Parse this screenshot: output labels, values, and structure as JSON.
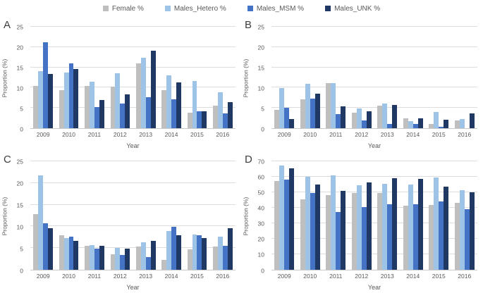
{
  "legend": {
    "items": [
      {
        "label": "Female %",
        "color": "#BFBFBF"
      },
      {
        "label": "Males_Hetero %",
        "color": "#9DC3E6"
      },
      {
        "label": "Males_MSM %",
        "color": "#4472C4"
      },
      {
        "label": "Males_UNK %",
        "color": "#1F3864"
      }
    ]
  },
  "chart_data": [
    {
      "panel": "A",
      "type": "bar",
      "title": "",
      "xlabel": "Year",
      "ylabel": "Proportion (%)",
      "ylim": [
        0,
        25
      ],
      "ytick_step": 5,
      "grid": true,
      "legend_position": "top",
      "categories": [
        "2009",
        "2010",
        "2011",
        "2012",
        "2013",
        "2014",
        "2015",
        "2016"
      ],
      "series": [
        {
          "name": "Female %",
          "color": "#BFBFBF",
          "values": [
            10.4,
            9.3,
            10.5,
            10.3,
            15.9,
            9.4,
            3.9,
            5.6
          ]
        },
        {
          "name": "Males_Hetero %",
          "color": "#9DC3E6",
          "values": [
            14.0,
            13.8,
            11.5,
            13.6,
            17.3,
            13.0,
            11.7,
            8.8
          ]
        },
        {
          "name": "Males_MSM %",
          "color": "#4472C4",
          "values": [
            21.1,
            15.9,
            5.2,
            6.1,
            7.6,
            7.2,
            4.2,
            3.7
          ]
        },
        {
          "name": "Males_UNK %",
          "color": "#1F3864",
          "values": [
            13.4,
            14.6,
            7.0,
            8.3,
            19.1,
            11.3,
            4.1,
            6.5
          ]
        }
      ]
    },
    {
      "panel": "B",
      "type": "bar",
      "title": "",
      "xlabel": "Year",
      "ylabel": "Proportion (%)",
      "ylim": [
        0,
        25
      ],
      "ytick_step": 5,
      "grid": true,
      "legend_position": "top",
      "categories": [
        "2009",
        "2010",
        "2011",
        "2012",
        "2013",
        "2014",
        "2015",
        "2016"
      ],
      "series": [
        {
          "name": "Female %",
          "color": "#BFBFBF",
          "values": [
            4.5,
            7.1,
            11.1,
            3.8,
            5.6,
            2.5,
            1.0,
            1.9
          ]
        },
        {
          "name": "Males_Hetero %",
          "color": "#9DC3E6",
          "values": [
            9.9,
            11.0,
            11.1,
            4.8,
            6.1,
            1.7,
            4.0,
            2.2
          ]
        },
        {
          "name": "Males_MSM %",
          "color": "#4472C4",
          "values": [
            5.1,
            7.3,
            3.5,
            1.9,
            1.1,
            1.1,
            0.4,
            0
          ]
        },
        {
          "name": "Males_UNK %",
          "color": "#1F3864",
          "values": [
            2.3,
            8.5,
            5.4,
            4.2,
            5.8,
            2.5,
            2.0,
            3.6
          ]
        }
      ]
    },
    {
      "panel": "C",
      "type": "bar",
      "title": "",
      "xlabel": "Year",
      "ylabel": "Proportion (%)",
      "ylim": [
        0,
        25
      ],
      "ytick_step": 5,
      "grid": true,
      "legend_position": "top",
      "categories": [
        "2009",
        "2010",
        "2011",
        "2012",
        "2013",
        "2014",
        "2015",
        "2016"
      ],
      "series": [
        {
          "name": "Female %",
          "color": "#BFBFBF",
          "values": [
            12.8,
            8.0,
            5.5,
            3.6,
            5.3,
            2.2,
            4.7,
            5.3
          ]
        },
        {
          "name": "Males_Hetero %",
          "color": "#9DC3E6",
          "values": [
            21.7,
            7.3,
            5.7,
            5.1,
            6.4,
            8.9,
            8.1,
            7.6
          ]
        },
        {
          "name": "Males_MSM %",
          "color": "#4472C4",
          "values": [
            10.7,
            7.6,
            4.8,
            3.4,
            2.9,
            9.9,
            8.0,
            5.5
          ]
        },
        {
          "name": "Males_UNK %",
          "color": "#1F3864",
          "values": [
            9.5,
            6.6,
            5.5,
            4.9,
            6.7,
            7.9,
            7.3,
            9.6
          ]
        }
      ]
    },
    {
      "panel": "D",
      "type": "bar",
      "title": "",
      "xlabel": "Year",
      "ylabel": "Proportion (%)",
      "ylim": [
        0,
        70
      ],
      "ytick_step": 10,
      "grid": true,
      "legend_position": "top",
      "categories": [
        "2009",
        "2010",
        "2011",
        "2012",
        "2013",
        "2014",
        "2015",
        "2016"
      ],
      "series": [
        {
          "name": "Female %",
          "color": "#BFBFBF",
          "values": [
            57.5,
            45.5,
            48.0,
            49.5,
            49.5,
            41.5,
            42.0,
            43.0
          ]
        },
        {
          "name": "Males_Hetero %",
          "color": "#9DC3E6",
          "values": [
            67.5,
            60.0,
            61.0,
            54.5,
            55.5,
            55.0,
            59.5,
            51.5
          ]
        },
        {
          "name": "Males_MSM %",
          "color": "#4472C4",
          "values": [
            58.0,
            49.5,
            37.5,
            40.5,
            42.5,
            42.5,
            44.0,
            39.0
          ]
        },
        {
          "name": "Males_UNK %",
          "color": "#1F3864",
          "values": [
            65.5,
            55.0,
            51.0,
            56.5,
            59.0,
            58.5,
            53.5,
            50.0
          ]
        }
      ]
    }
  ]
}
